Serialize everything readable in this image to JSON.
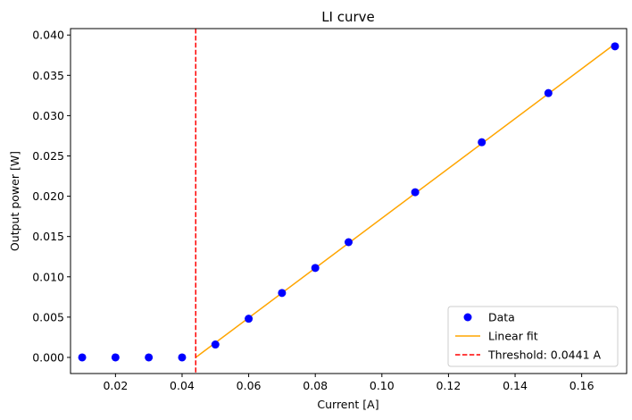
{
  "chart_data": {
    "type": "scatter",
    "title": "LI curve",
    "xlabel": "Current [A]",
    "ylabel": "Output power [W]",
    "xlim": [
      0.0065,
      0.1735
    ],
    "ylim": [
      -0.002,
      0.0408
    ],
    "xticks": [
      0.02,
      0.04,
      0.06,
      0.08,
      0.1,
      0.12,
      0.14,
      0.16
    ],
    "xtick_labels": [
      "0.02",
      "0.04",
      "0.06",
      "0.08",
      "0.10",
      "0.12",
      "0.14",
      "0.16"
    ],
    "yticks": [
      0.0,
      0.005,
      0.01,
      0.015,
      0.02,
      0.025,
      0.03,
      0.035,
      0.04
    ],
    "ytick_labels": [
      "0.000",
      "0.005",
      "0.010",
      "0.015",
      "0.020",
      "0.025",
      "0.030",
      "0.035",
      "0.040"
    ],
    "grid": false,
    "legend_position": "lower-right",
    "series": [
      {
        "name": "Data",
        "kind": "scatter",
        "color": "#0000ff",
        "x": [
          0.01,
          0.02,
          0.03,
          0.04,
          0.05,
          0.06,
          0.07,
          0.08,
          0.09,
          0.11,
          0.13,
          0.15,
          0.17
        ],
        "y": [
          0.0,
          0.0,
          0.0,
          0.0,
          0.0016,
          0.0048,
          0.008,
          0.0111,
          0.0143,
          0.0205,
          0.0267,
          0.0328,
          0.0386
        ]
      },
      {
        "name": "Linear fit",
        "kind": "line",
        "color": "#ffa500",
        "x": [
          0.0441,
          0.17
        ],
        "y": [
          0.0,
          0.0389
        ]
      },
      {
        "name": "Threshold: 0.0441 A",
        "kind": "vline",
        "color": "#ff0000",
        "x": 0.0441
      }
    ]
  }
}
